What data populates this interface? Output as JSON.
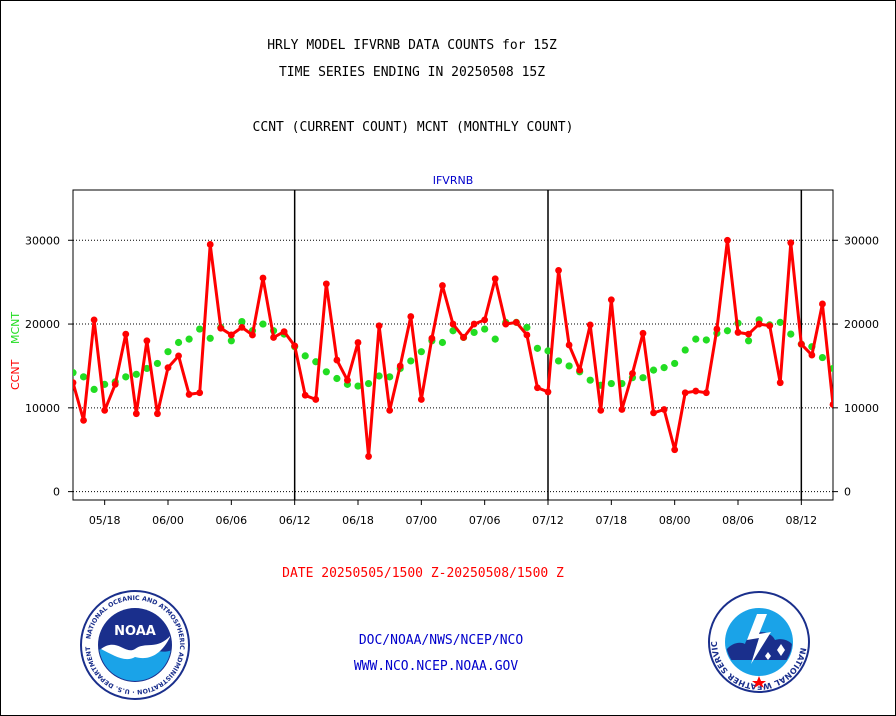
{
  "header": {
    "line1": "HRLY MODEL IFVRNB DATA COUNTS for 15Z",
    "line2": "TIME SERIES ENDING IN 20250508 15Z",
    "line3": "CCNT (CURRENT COUNT) MCNT (MONTHLY COUNT)"
  },
  "footer": {
    "date_range": "DATE 20250505/1500 Z-20250508/1500 Z",
    "org": "DOC/NOAA/NWS/NCEP/NCO",
    "url": "WWW.NCO.NCEP.NOAA.GOV"
  },
  "logos": {
    "left": {
      "text": "NOAA",
      "ring": "NATIONAL OCEANIC AND ATMOSPHERIC ADMINISTRATION · U.S. DEPARTMENT OF COMMERCE"
    },
    "right": {
      "ring": "NATIONAL WEATHER SERVICE"
    }
  },
  "colors": {
    "ccnt": "#ff0000",
    "mcnt": "#22dd22",
    "title": "#0000cc",
    "date": "#ff0000"
  },
  "chart_data": {
    "type": "line",
    "title": "IFVRNB",
    "ylabel_left": "CCNT",
    "ylabel_mcnt": "MCNT",
    "ylim": [
      -1000,
      36000
    ],
    "yticks": [
      0,
      10000,
      20000,
      30000
    ],
    "xlim": [
      0,
      72
    ],
    "xticks": [
      {
        "x": 3,
        "label": "05/18"
      },
      {
        "x": 9,
        "label": "06/00"
      },
      {
        "x": 15,
        "label": "06/06"
      },
      {
        "x": 21,
        "label": "06/12"
      },
      {
        "x": 27,
        "label": "06/18"
      },
      {
        "x": 33,
        "label": "07/00"
      },
      {
        "x": 39,
        "label": "07/06"
      },
      {
        "x": 45,
        "label": "07/12"
      },
      {
        "x": 51,
        "label": "07/18"
      },
      {
        "x": 57,
        "label": "08/00"
      },
      {
        "x": 63,
        "label": "08/06"
      },
      {
        "x": 69,
        "label": "08/12"
      }
    ],
    "day_boundaries": [
      21,
      45,
      69
    ],
    "grid_y": true,
    "series": [
      {
        "name": "CCNT",
        "values": [
          13000,
          8500,
          20500,
          9700,
          12800,
          18800,
          9300,
          18000,
          9300,
          14800,
          16200,
          11600,
          11800,
          29500,
          19500,
          18700,
          19600,
          18700,
          25500,
          18400,
          19100,
          17400,
          11500,
          11000,
          24800,
          15700,
          13300,
          17800,
          4200,
          19800,
          9700,
          15000,
          20900,
          11000,
          18300,
          24600,
          20000,
          18400,
          20000,
          20500,
          25400,
          20000,
          20200,
          18700,
          12400,
          11900,
          26400,
          17500,
          14500,
          19900,
          9700,
          22900,
          9800,
          14100,
          18900,
          9400,
          9800,
          5000,
          11800,
          12000,
          11800,
          19400,
          30000,
          19000,
          18800,
          20000,
          19800,
          13000,
          29700,
          17600,
          16300,
          22400,
          10400
        ]
      },
      {
        "name": "MCNT",
        "values": [
          14200,
          13700,
          12200,
          12800,
          13100,
          13700,
          14000,
          14700,
          15300,
          16700,
          17800,
          18200,
          19400,
          18300,
          19600,
          18000,
          20300,
          19200,
          20000,
          19200,
          18800,
          17300,
          16200,
          15500,
          14300,
          13500,
          12800,
          12600,
          12900,
          13800,
          13700,
          14700,
          15600,
          16700,
          18000,
          17800,
          19200,
          18400,
          19000,
          19400,
          18200,
          20200,
          20200,
          19600,
          17100,
          16800,
          15600,
          15000,
          14300,
          13300,
          12700,
          12900,
          12900,
          13600,
          13600,
          14500,
          14800,
          15300,
          16900,
          18200,
          18100,
          18900,
          19200,
          20100,
          18000,
          20500,
          19900,
          20200,
          18800,
          17600,
          17300,
          16000,
          14700
        ]
      }
    ]
  }
}
